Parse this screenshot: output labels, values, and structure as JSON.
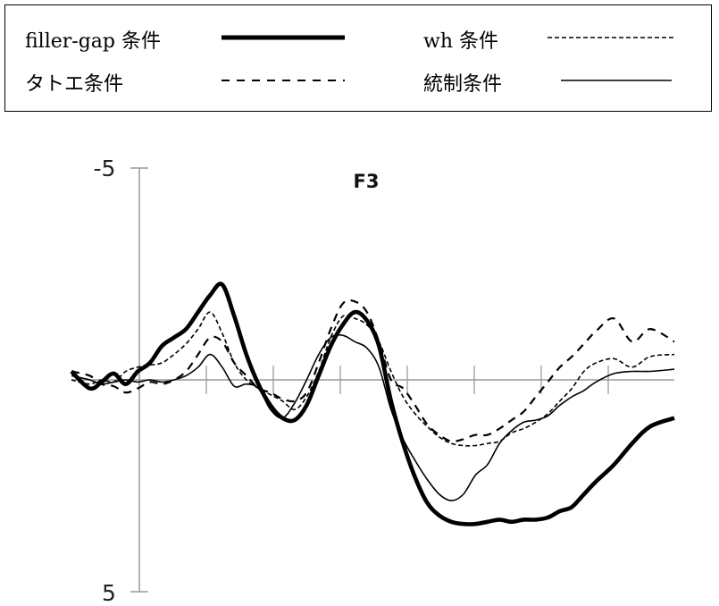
{
  "legend": {
    "entries": [
      {
        "label": "filler-gap 条件",
        "series": "filler-gap"
      },
      {
        "label": "wh 条件",
        "series": "wh"
      },
      {
        "label": "タトエ条件",
        "series": "tatoe"
      },
      {
        "label": "統制条件",
        "series": "control"
      }
    ]
  },
  "chart_data": {
    "type": "line",
    "title": "F3",
    "xlabel": "",
    "ylabel": "",
    "ylim": [
      -5,
      5
    ],
    "y_inverted": true,
    "y_tick_labels": [
      "-5",
      "5"
    ],
    "x_tick_count": 6,
    "grid": false,
    "legend_position": "top (boxed, above plot)",
    "colors": {
      "line": "#000000",
      "axis": "#9a9a9a"
    },
    "series": [
      {
        "name": "filler-gap 条件",
        "style": "thick-solid",
        "x": [
          0,
          3,
          5,
          7,
          9,
          11,
          13,
          15,
          17,
          19,
          21,
          23,
          25,
          27,
          29,
          31,
          33,
          35,
          37,
          39,
          41,
          43,
          45,
          47,
          49,
          51,
          53,
          55,
          57,
          59,
          61,
          63,
          65,
          67,
          69,
          71,
          73,
          75,
          77,
          79,
          81,
          83,
          85,
          87,
          90,
          93,
          96,
          100
        ],
        "values": [
          -0.2,
          0.2,
          0.05,
          -0.15,
          0.1,
          -0.2,
          -0.4,
          -0.8,
          -1.0,
          -1.2,
          -1.6,
          -2.0,
          -2.25,
          -1.5,
          -0.6,
          0.1,
          0.6,
          0.9,
          0.95,
          0.6,
          -0.1,
          -0.8,
          -1.3,
          -1.6,
          -1.4,
          -0.8,
          0.5,
          1.5,
          2.3,
          2.9,
          3.2,
          3.35,
          3.4,
          3.4,
          3.35,
          3.3,
          3.35,
          3.3,
          3.3,
          3.25,
          3.1,
          3.0,
          2.7,
          2.4,
          2.0,
          1.5,
          1.1,
          0.9
        ]
      },
      {
        "name": "wh 条件",
        "style": "short-dash",
        "x": [
          0,
          3,
          5,
          7,
          9,
          11,
          13,
          15,
          17,
          19,
          21,
          23,
          25,
          27,
          29,
          31,
          33,
          35,
          37,
          39,
          41,
          43,
          45,
          47,
          49,
          51,
          53,
          55,
          57,
          59,
          61,
          63,
          65,
          67,
          69,
          71,
          73,
          75,
          77,
          79,
          81,
          83,
          85,
          87,
          90,
          93,
          96,
          100
        ],
        "values": [
          0.0,
          0.1,
          0.0,
          0.05,
          -0.2,
          -0.3,
          -0.35,
          -0.4,
          -0.6,
          -0.85,
          -1.2,
          -1.6,
          -1.1,
          -0.4,
          0.0,
          0.2,
          0.35,
          0.5,
          0.7,
          0.4,
          -0.2,
          -1.0,
          -1.5,
          -1.45,
          -1.3,
          -0.9,
          -0.2,
          0.4,
          0.8,
          1.1,
          1.35,
          1.5,
          1.55,
          1.55,
          1.5,
          1.45,
          1.25,
          1.15,
          1.0,
          0.8,
          0.5,
          0.2,
          -0.2,
          -0.4,
          -0.5,
          -0.3,
          -0.55,
          -0.6
        ]
      },
      {
        "name": "タトエ条件",
        "style": "long-dash",
        "x": [
          0,
          3,
          5,
          7,
          9,
          11,
          13,
          15,
          17,
          19,
          21,
          23,
          25,
          27,
          29,
          31,
          33,
          35,
          37,
          39,
          41,
          43,
          45,
          47,
          49,
          51,
          53,
          55,
          57,
          59,
          61,
          63,
          65,
          67,
          69,
          71,
          73,
          75,
          77,
          79,
          81,
          83,
          85,
          87,
          90,
          93,
          96,
          100
        ],
        "values": [
          -0.2,
          -0.1,
          0.1,
          0.15,
          0.3,
          0.2,
          0.05,
          0.1,
          0.0,
          -0.2,
          -0.6,
          -1.0,
          -0.9,
          -0.4,
          -0.1,
          0.2,
          0.3,
          0.45,
          0.5,
          0.3,
          -0.4,
          -1.2,
          -1.8,
          -1.85,
          -1.6,
          -0.9,
          0.0,
          0.2,
          0.6,
          1.05,
          1.3,
          1.45,
          1.4,
          1.3,
          1.3,
          1.15,
          0.95,
          0.75,
          0.4,
          0.05,
          -0.3,
          -0.55,
          -0.85,
          -1.15,
          -1.45,
          -0.9,
          -1.2,
          -0.9
        ]
      },
      {
        "name": "統制条件",
        "style": "thin-solid",
        "x": [
          0,
          3,
          5,
          7,
          9,
          11,
          13,
          15,
          17,
          19,
          21,
          23,
          25,
          27,
          29,
          31,
          33,
          35,
          37,
          39,
          41,
          43,
          45,
          47,
          49,
          51,
          53,
          55,
          57,
          59,
          61,
          63,
          65,
          67,
          69,
          71,
          73,
          75,
          77,
          79,
          81,
          83,
          85,
          87,
          90,
          93,
          96,
          100
        ],
        "values": [
          -0.1,
          0.0,
          0.1,
          0.05,
          0.0,
          0.05,
          0.0,
          0.05,
          0.0,
          -0.1,
          -0.3,
          -0.6,
          -0.3,
          0.15,
          0.1,
          0.2,
          0.7,
          0.9,
          0.55,
          0.0,
          -0.6,
          -1.0,
          -1.05,
          -0.9,
          -0.75,
          -0.3,
          0.7,
          1.4,
          1.9,
          2.35,
          2.7,
          2.85,
          2.7,
          2.25,
          2.0,
          1.5,
          1.2,
          1.0,
          0.95,
          0.85,
          0.6,
          0.4,
          0.25,
          0.05,
          -0.15,
          -0.2,
          -0.2,
          -0.25
        ]
      }
    ]
  }
}
